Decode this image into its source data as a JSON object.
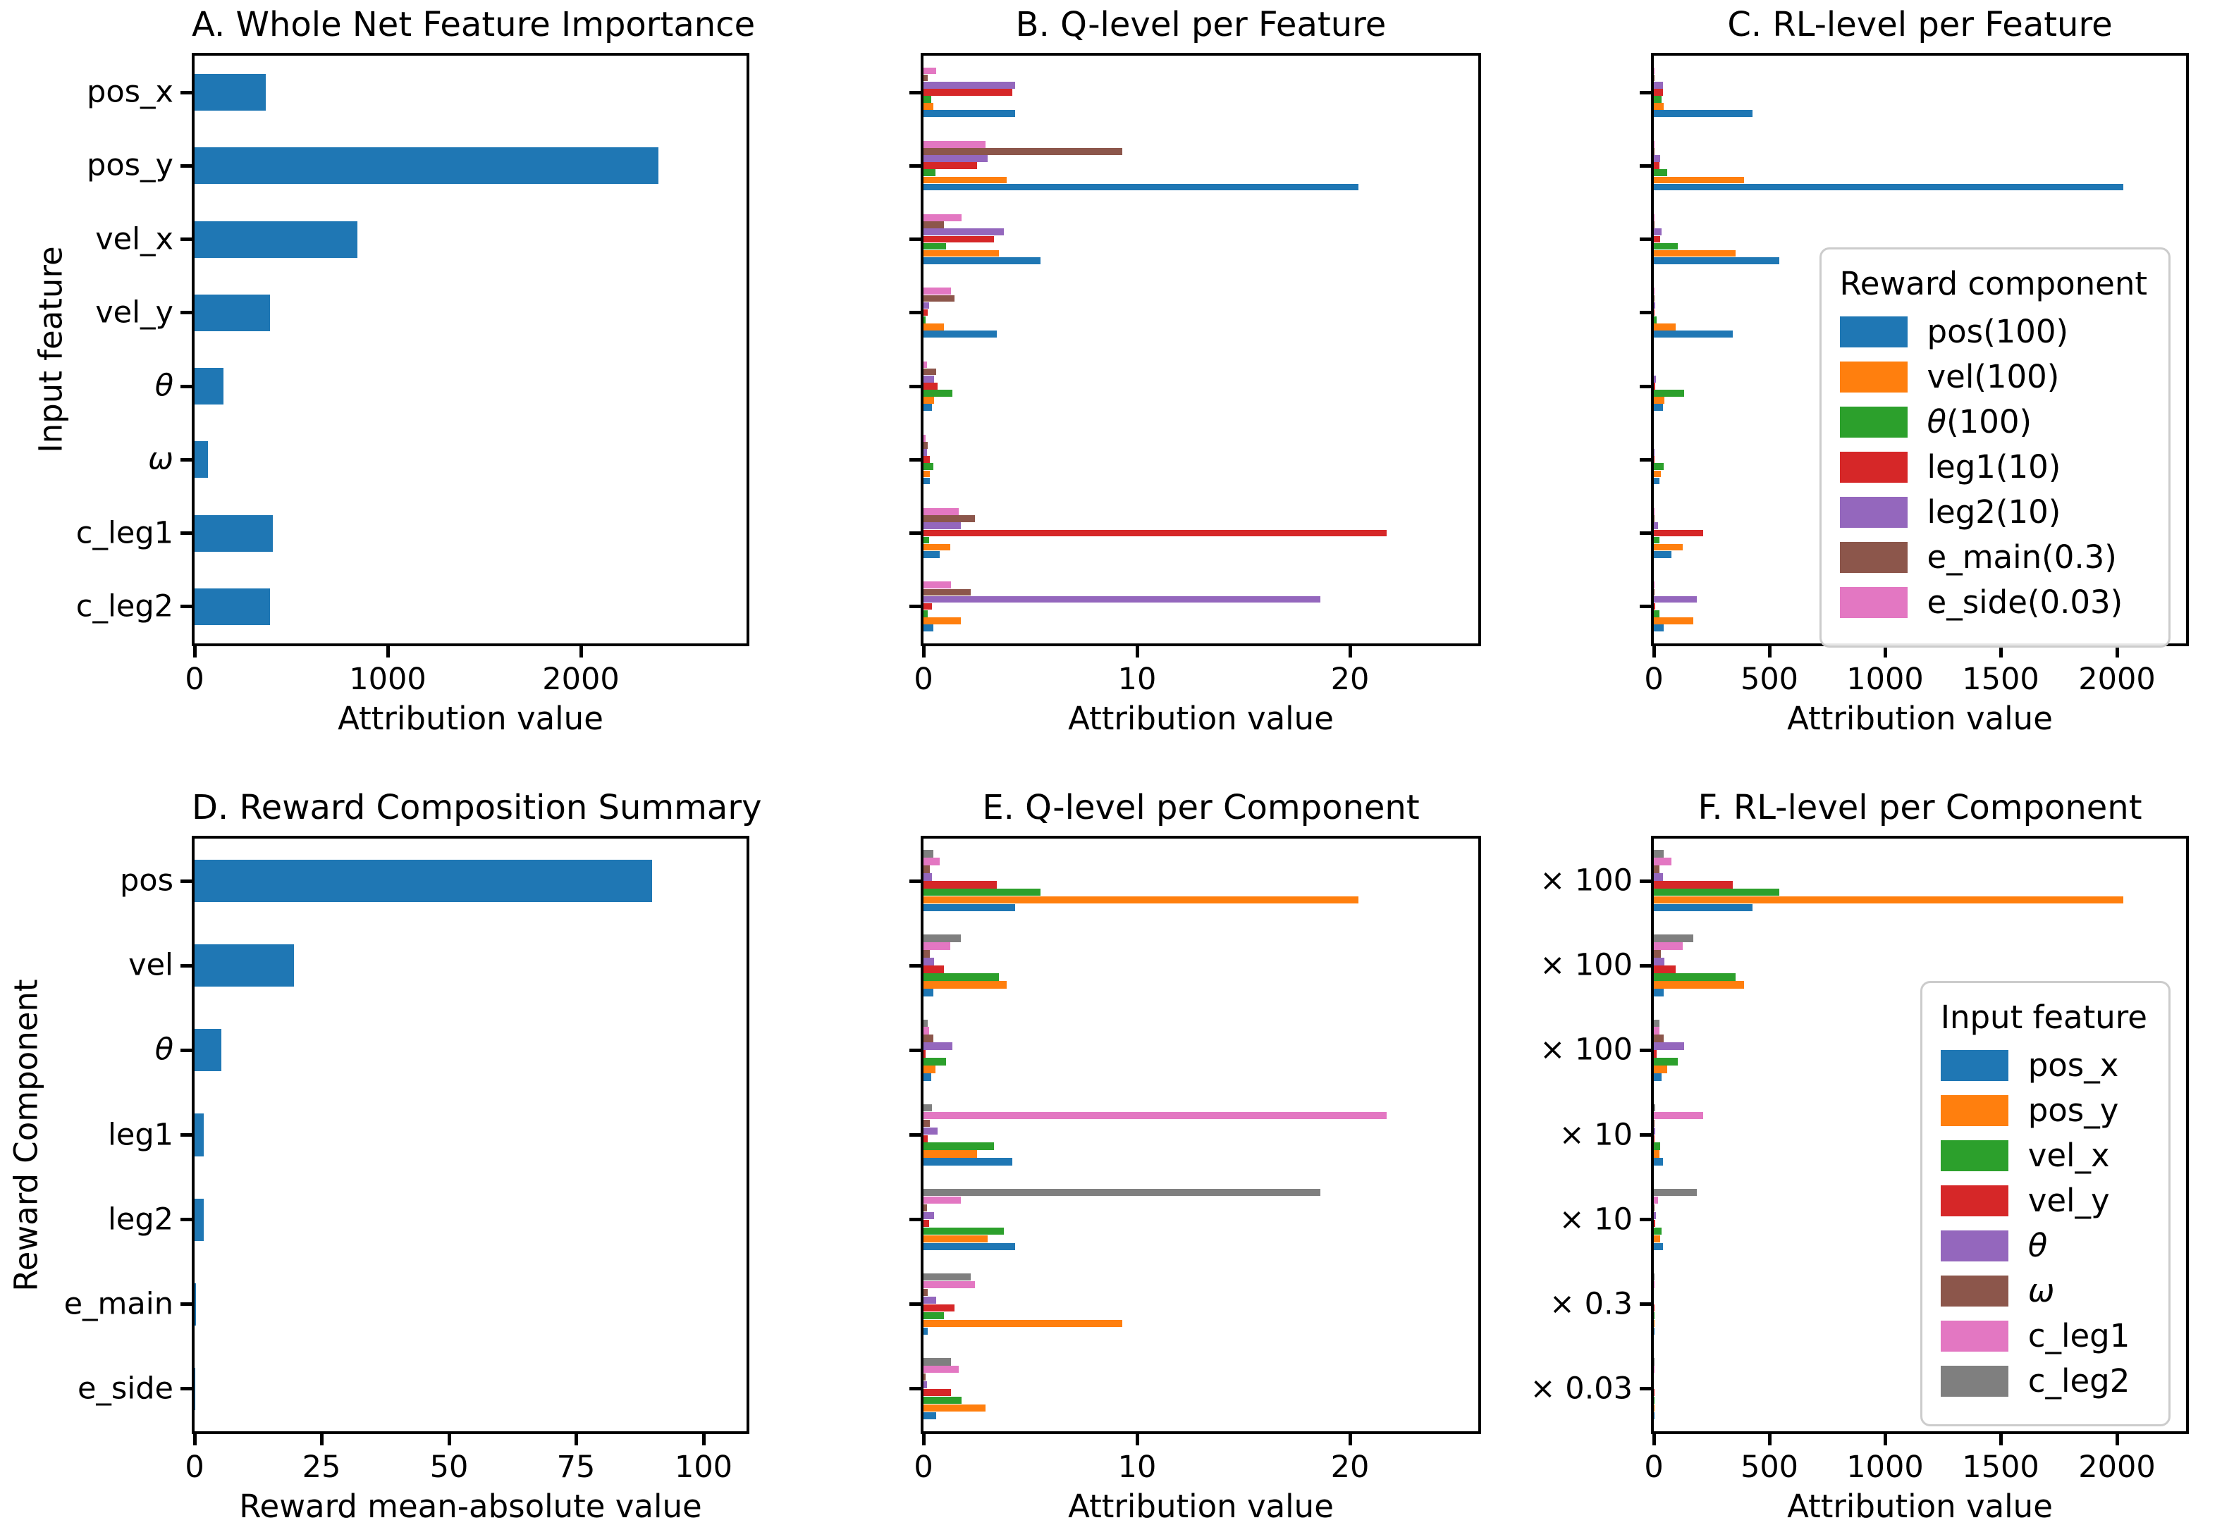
{
  "figure": {
    "background": "#ffffff",
    "text_color": "#000000",
    "palette": {
      "blue": "#1f77b4",
      "orange": "#ff7f0e",
      "green": "#2ca02c",
      "red": "#d62728",
      "purple": "#9467bd",
      "brown": "#8c564b",
      "pink": "#e377c2",
      "gray": "#7f7f7f"
    }
  },
  "chart_data": [
    {
      "panel": "A",
      "type": "bar",
      "title": "A. Whole Net Feature Importance",
      "xlabel": "Attribution value",
      "ylabel": "Input feature",
      "categories": [
        "pos_x",
        "pos_y",
        "vel_x",
        "vel_y",
        "θ",
        "ω",
        "c_leg1",
        "c_leg2"
      ],
      "values": [
        370,
        2405,
        845,
        390,
        150,
        70,
        405,
        390
      ],
      "bar_color": "#1f77b4",
      "xlim": [
        0,
        2860
      ],
      "xticks": [
        0,
        1000,
        2000
      ],
      "grid": false,
      "show_category_labels": true,
      "bar_frac": 0.5
    },
    {
      "panel": "B",
      "type": "bar-grouped",
      "title": "B. Q-level per Feature",
      "xlabel": "Attribution value",
      "ylabel": "",
      "categories": [
        "pos_x",
        "pos_y",
        "vel_x",
        "vel_y",
        "θ",
        "ω",
        "c_leg1",
        "c_leg2"
      ],
      "series": [
        {
          "name": "pos(100)",
          "color": "#1f77b4",
          "values": [
            4.3,
            20.4,
            5.5,
            3.45,
            0.4,
            0.3,
            0.75,
            0.45
          ]
        },
        {
          "name": "vel(100)",
          "color": "#ff7f0e",
          "values": [
            0.45,
            3.9,
            3.55,
            0.95,
            0.5,
            0.3,
            1.25,
            1.75
          ]
        },
        {
          "name": "θ(100)",
          "color": "#2ca02c",
          "values": [
            0.35,
            0.55,
            1.05,
            0.1,
            1.35,
            0.45,
            0.25,
            0.2
          ]
        },
        {
          "name": "leg1(10)",
          "color": "#d62728",
          "values": [
            4.15,
            2.5,
            3.3,
            0.2,
            0.65,
            0.3,
            21.7,
            0.4
          ]
        },
        {
          "name": "leg2(10)",
          "color": "#9467bd",
          "values": [
            4.3,
            3.0,
            3.75,
            0.25,
            0.5,
            0.15,
            1.75,
            18.6
          ]
        },
        {
          "name": "e_main(0.3)",
          "color": "#8c564b",
          "values": [
            0.2,
            9.3,
            0.95,
            1.45,
            0.6,
            0.2,
            2.4,
            2.2
          ]
        },
        {
          "name": "e_side(0.03)",
          "color": "#e377c2",
          "values": [
            0.6,
            2.9,
            1.8,
            1.3,
            0.15,
            0.1,
            1.65,
            1.3
          ]
        }
      ],
      "xlim": [
        0,
        26
      ],
      "xticks": [
        0,
        10,
        20
      ],
      "grid": false,
      "show_category_labels": false,
      "band_frac": 0.68
    },
    {
      "panel": "C",
      "type": "bar-grouped",
      "title": "C. RL-level per Feature",
      "xlabel": "Attribution value",
      "ylabel": "",
      "categories": [
        "pos_x",
        "pos_y",
        "vel_x",
        "vel_y",
        "θ",
        "ω",
        "c_leg1",
        "c_leg2"
      ],
      "series": [
        {
          "name": "pos(100)",
          "color": "#1f77b4",
          "values": [
            425,
            2030,
            542,
            342,
            41,
            24,
            75,
            44
          ]
        },
        {
          "name": "vel(100)",
          "color": "#ff7f0e",
          "values": [
            42,
            390,
            352,
            94,
            46,
            31,
            124,
            172
          ]
        },
        {
          "name": "θ(100)",
          "color": "#2ca02c",
          "values": [
            35,
            57,
            105,
            11,
            132,
            42,
            24,
            24
          ]
        },
        {
          "name": "leg1(10)",
          "color": "#d62728",
          "values": [
            40,
            25,
            27,
            4,
            6,
            3,
            214,
            5
          ]
        },
        {
          "name": "leg2(10)",
          "color": "#9467bd",
          "values": [
            40,
            27,
            34,
            5,
            8,
            2,
            18,
            185
          ]
        },
        {
          "name": "e_main(0.3)",
          "color": "#8c564b",
          "values": [
            2,
            3,
            2,
            2,
            1,
            1,
            2,
            2
          ]
        },
        {
          "name": "e_side(0.03)",
          "color": "#e377c2",
          "values": [
            4,
            4,
            3,
            2,
            1,
            1,
            2,
            2
          ]
        }
      ],
      "xlim": [
        0,
        2300
      ],
      "xticks": [
        0,
        500,
        1000,
        1500,
        2000
      ],
      "grid": false,
      "show_category_labels": false,
      "band_frac": 0.68,
      "legend": {
        "title": "Reward component"
      }
    },
    {
      "panel": "D",
      "type": "bar",
      "title": "D. Reward Composition Summary",
      "xlabel": "Reward mean-absolute value",
      "ylabel": "Reward Component",
      "categories": [
        "pos",
        "vel",
        "θ",
        "leg1",
        "leg2",
        "e_main",
        "e_side"
      ],
      "values": [
        90,
        19.5,
        5.3,
        1.8,
        1.8,
        0.3,
        0.1
      ],
      "bar_color": "#1f77b4",
      "xlim": [
        0,
        108.5
      ],
      "xticks": [
        0,
        25,
        50,
        75,
        100
      ],
      "grid": false,
      "show_category_labels": true,
      "bar_frac": 0.5
    },
    {
      "panel": "E",
      "type": "bar-grouped",
      "title": "E. Q-level per Component",
      "xlabel": "Attribution value",
      "ylabel": "",
      "categories": [
        "pos",
        "vel",
        "θ",
        "leg1",
        "leg2",
        "e_main",
        "e_side"
      ],
      "series": [
        {
          "name": "pos_x",
          "color": "#1f77b4",
          "values": [
            4.3,
            0.45,
            0.35,
            4.15,
            4.3,
            0.2,
            0.6
          ]
        },
        {
          "name": "pos_y",
          "color": "#ff7f0e",
          "values": [
            20.4,
            3.9,
            0.55,
            2.5,
            3.0,
            9.3,
            2.9
          ]
        },
        {
          "name": "vel_x",
          "color": "#2ca02c",
          "values": [
            5.5,
            3.55,
            1.05,
            3.3,
            3.75,
            0.95,
            1.8
          ]
        },
        {
          "name": "vel_y",
          "color": "#d62728",
          "values": [
            3.45,
            0.95,
            0.1,
            0.2,
            0.25,
            1.45,
            1.3
          ]
        },
        {
          "name": "θ",
          "color": "#9467bd",
          "values": [
            0.4,
            0.5,
            1.35,
            0.65,
            0.5,
            0.6,
            0.15
          ]
        },
        {
          "name": "ω",
          "color": "#8c564b",
          "values": [
            0.3,
            0.3,
            0.45,
            0.3,
            0.15,
            0.2,
            0.1
          ]
        },
        {
          "name": "c_leg1",
          "color": "#e377c2",
          "values": [
            0.75,
            1.25,
            0.25,
            21.7,
            1.75,
            2.4,
            1.65
          ]
        },
        {
          "name": "c_leg2",
          "color": "#7f7f7f",
          "values": [
            0.45,
            1.75,
            0.2,
            0.4,
            18.6,
            2.2,
            1.3
          ]
        }
      ],
      "xlim": [
        0,
        26
      ],
      "xticks": [
        0,
        10,
        20
      ],
      "grid": false,
      "show_category_labels": false,
      "band_frac": 0.73
    },
    {
      "panel": "F",
      "type": "bar-grouped",
      "title": "F. RL-level per Component",
      "xlabel": "Attribution value",
      "ylabel": "",
      "categories": [
        "pos",
        "vel",
        "θ",
        "leg1",
        "leg2",
        "e_main",
        "e_side"
      ],
      "ytick_labels": [
        "× 100",
        "× 100",
        "× 100",
        "× 10",
        "× 10",
        "× 0.3",
        "× 0.03"
      ],
      "series": [
        {
          "name": "pos_x",
          "color": "#1f77b4",
          "values": [
            425,
            42,
            35,
            40,
            40,
            2,
            4
          ]
        },
        {
          "name": "pos_y",
          "color": "#ff7f0e",
          "values": [
            2030,
            390,
            57,
            25,
            27,
            3,
            4
          ]
        },
        {
          "name": "vel_x",
          "color": "#2ca02c",
          "values": [
            542,
            352,
            105,
            27,
            34,
            2,
            3
          ]
        },
        {
          "name": "vel_y",
          "color": "#d62728",
          "values": [
            342,
            94,
            11,
            4,
            5,
            2,
            2
          ]
        },
        {
          "name": "θ",
          "color": "#9467bd",
          "values": [
            41,
            46,
            132,
            6,
            8,
            1,
            1
          ]
        },
        {
          "name": "ω",
          "color": "#8c564b",
          "values": [
            24,
            31,
            42,
            3,
            2,
            1,
            1
          ]
        },
        {
          "name": "c_leg1",
          "color": "#e377c2",
          "values": [
            75,
            124,
            24,
            214,
            18,
            2,
            2
          ]
        },
        {
          "name": "c_leg2",
          "color": "#7f7f7f",
          "values": [
            44,
            172,
            24,
            5,
            185,
            2,
            2
          ]
        }
      ],
      "xlim": [
        0,
        2300
      ],
      "xticks": [
        0,
        500,
        1000,
        1500,
        2000
      ],
      "grid": false,
      "show_category_labels": true,
      "band_frac": 0.73,
      "legend": {
        "title": "Input feature"
      }
    }
  ]
}
